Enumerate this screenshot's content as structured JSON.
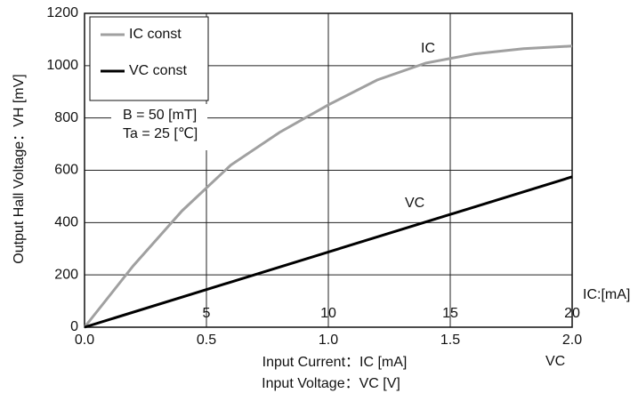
{
  "chart_data": {
    "type": "line",
    "ylabel": "Output Hall Voltage：VH [mV]",
    "xlabel": "Input Current：IC [mA]",
    "x2label": "Input Voltage：VC [V]",
    "xlim": [
      0,
      2
    ],
    "xticks": [
      {
        "value": 0,
        "label": "0.0"
      },
      0.5,
      {
        "value": 1,
        "label": "1.0"
      },
      1.5,
      {
        "value": 2,
        "label": "2.0"
      }
    ],
    "x2lim": [
      0,
      20
    ],
    "x2ticks": [
      5,
      10,
      15,
      20
    ],
    "ylim": [
      0,
      1200
    ],
    "yticks": [
      0,
      200,
      400,
      600,
      800,
      1000,
      1200
    ],
    "grid": true,
    "legend": "upper left",
    "series": [
      {
        "name": "IC const",
        "color": "#a0a0a0",
        "axis": "x2",
        "x": [
          0,
          2,
          4,
          6,
          8,
          10,
          12,
          14,
          16,
          18,
          20
        ],
        "values": [
          0,
          235,
          445,
          620,
          745,
          850,
          945,
          1010,
          1045,
          1065,
          1075
        ]
      },
      {
        "name": "VC const",
        "color": "#000000",
        "x": [
          0,
          2
        ],
        "values": [
          0,
          575
        ]
      }
    ],
    "annotations": [
      "IC",
      "VC",
      "B  = 50 [mT]",
      "Ta = 25 [℃]",
      "IC:[mA]",
      "VC"
    ]
  }
}
